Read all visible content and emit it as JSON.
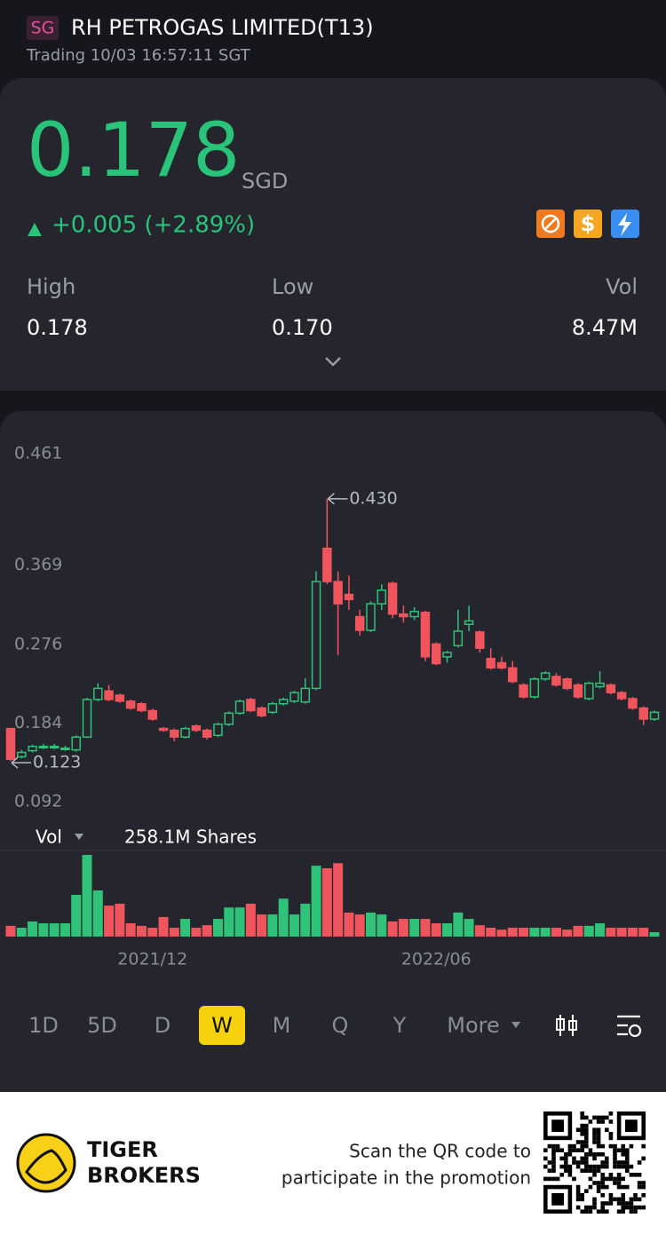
{
  "header": {
    "exchange": "SG",
    "title": "RH PETROGAS LIMITED(T13)",
    "status": "Trading 10/03 16:57:11 SGT"
  },
  "quote": {
    "price": "0.178",
    "currency": "SGD",
    "change": "+0.005 (+2.89%)",
    "stats": [
      {
        "label": "High",
        "value": "0.178"
      },
      {
        "label": "Low",
        "value": "0.170"
      },
      {
        "label": "Vol",
        "value": "8.47M"
      }
    ]
  },
  "chart_data": {
    "type": "candlestick",
    "categories": [
      null,
      null,
      null,
      null,
      null,
      null,
      null,
      null,
      null,
      null,
      null,
      null,
      null,
      "2021/12",
      null,
      null,
      null,
      null,
      null,
      null,
      null,
      null,
      null,
      null,
      null,
      null,
      null,
      null,
      null,
      null,
      null,
      null,
      null,
      null,
      null,
      null,
      null,
      null,
      null,
      "2022/06",
      null,
      null,
      null,
      null,
      null,
      null,
      null,
      null,
      null,
      null,
      null,
      null,
      null,
      null,
      null,
      null,
      null,
      null,
      null,
      null
    ],
    "open": [
      0.161,
      0.128,
      0.135,
      0.14,
      0.14,
      0.138,
      0.136,
      0.151,
      0.195,
      0.205,
      0.2,
      0.193,
      0.19,
      0.182,
      0.161,
      0.159,
      0.151,
      0.164,
      0.159,
      0.153,
      0.166,
      0.179,
      0.195,
      0.185,
      0.18,
      0.19,
      0.193,
      0.192,
      0.208,
      0.372,
      0.333,
      0.318,
      0.292,
      0.276,
      0.307,
      0.331,
      0.295,
      0.292,
      0.297,
      0.26,
      0.245,
      0.258,
      0.283,
      0.274,
      0.243,
      0.238,
      0.232,
      0.212,
      0.198,
      0.219,
      0.222,
      0.219,
      0.212,
      0.196,
      0.21,
      0.212,
      0.203,
      0.196,
      0.185,
      0.172
    ],
    "high": [
      0.161,
      0.136,
      0.142,
      0.143,
      0.143,
      0.141,
      0.153,
      0.197,
      0.214,
      0.212,
      0.202,
      0.195,
      0.192,
      0.184,
      0.163,
      0.161,
      0.163,
      0.166,
      0.161,
      0.168,
      0.181,
      0.195,
      0.197,
      0.187,
      0.192,
      0.197,
      0.205,
      0.22,
      0.345,
      0.43,
      0.345,
      0.34,
      0.3,
      0.31,
      0.33,
      0.333,
      0.305,
      0.303,
      0.299,
      0.262,
      0.252,
      0.3,
      0.305,
      0.276,
      0.255,
      0.245,
      0.24,
      0.214,
      0.221,
      0.228,
      0.226,
      0.221,
      0.214,
      0.216,
      0.228,
      0.214,
      0.205,
      0.198,
      0.187,
      0.182
    ],
    "low": [
      0.123,
      0.126,
      0.133,
      0.137,
      0.137,
      0.135,
      0.134,
      0.15,
      0.193,
      0.193,
      0.191,
      0.183,
      0.18,
      0.17,
      0.157,
      0.146,
      0.149,
      0.157,
      0.148,
      0.151,
      0.164,
      0.177,
      0.18,
      0.174,
      0.178,
      0.188,
      0.191,
      0.19,
      0.206,
      0.33,
      0.247,
      0.3,
      0.27,
      0.274,
      0.3,
      0.29,
      0.285,
      0.288,
      0.24,
      0.235,
      0.238,
      0.256,
      0.275,
      0.25,
      0.23,
      0.23,
      0.214,
      0.196,
      0.196,
      0.217,
      0.21,
      0.206,
      0.196,
      0.194,
      0.208,
      0.201,
      0.194,
      0.183,
      0.165,
      0.17
    ],
    "close": [
      0.125,
      0.133,
      0.14,
      0.14,
      0.14,
      0.138,
      0.151,
      0.195,
      0.208,
      0.195,
      0.193,
      0.185,
      0.182,
      0.172,
      0.159,
      0.151,
      0.161,
      0.159,
      0.151,
      0.166,
      0.179,
      0.193,
      0.182,
      0.176,
      0.19,
      0.195,
      0.203,
      0.208,
      0.333,
      0.333,
      0.307,
      0.312,
      0.276,
      0.307,
      0.323,
      0.295,
      0.292,
      0.298,
      0.245,
      0.237,
      0.25,
      0.275,
      0.287,
      0.255,
      0.232,
      0.232,
      0.216,
      0.198,
      0.219,
      0.226,
      0.212,
      0.208,
      0.198,
      0.214,
      0.214,
      0.203,
      0.196,
      0.185,
      0.172,
      0.18
    ],
    "volume": [
      34,
      28,
      48,
      42,
      42,
      42,
      132,
      258.1,
      146,
      98,
      104,
      42,
      34,
      28,
      62,
      28,
      56,
      28,
      36,
      56,
      92,
      92,
      104,
      70,
      70,
      120,
      70,
      104,
      224,
      216,
      232,
      76,
      70,
      76,
      70,
      48,
      56,
      56,
      56,
      42,
      42,
      76,
      56,
      36,
      28,
      22,
      28,
      28,
      28,
      28,
      28,
      22,
      34,
      34,
      42,
      28,
      28,
      28,
      28,
      14
    ],
    "ylim": [
      0.092,
      0.461
    ],
    "yticks": [
      0.461,
      0.369,
      0.276,
      0.184,
      0.092
    ],
    "high_label": "0.430",
    "low_label": "0.123",
    "volume_title": "Vol",
    "volume_label": "258.1M Shares",
    "up_color": "#2fc279",
    "down_color": "#f0545c"
  },
  "timeframes": [
    "1D",
    "5D",
    "D",
    "W",
    "M",
    "Q",
    "Y",
    "More"
  ],
  "active_timeframe": 3,
  "footer": {
    "brand_1": "TIGER",
    "brand_2": "BROKERS",
    "promo_1": "Scan the QR code to",
    "promo_2": "participate in the promotion"
  }
}
